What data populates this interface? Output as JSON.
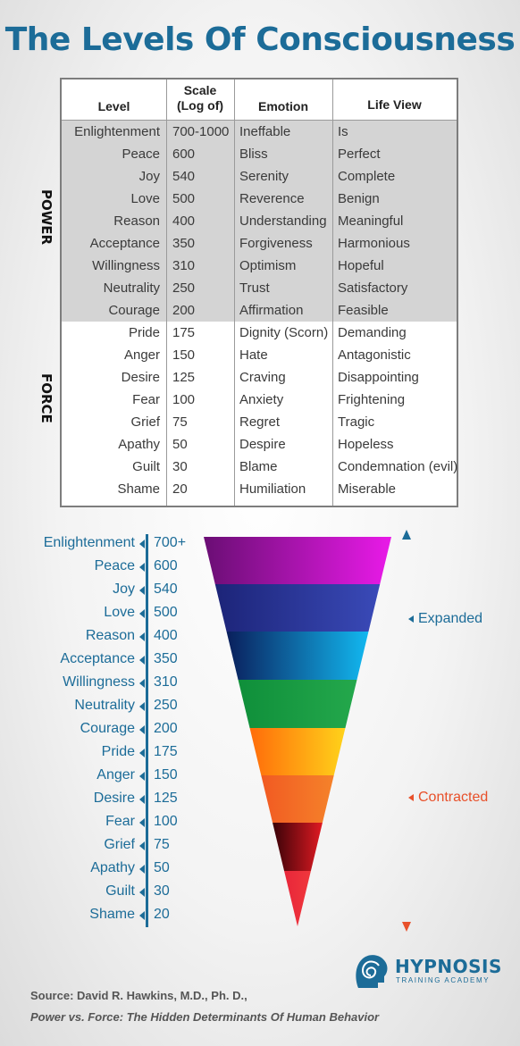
{
  "title": "The Levels Of Consciousness",
  "table": {
    "headers": {
      "level": "Level",
      "scale_line1": "Scale",
      "scale_line2": "(Log of)",
      "emotion": "Emotion",
      "life_view": "Life View"
    },
    "power_label": "POWER",
    "force_label": "FORCE",
    "rows": [
      {
        "level": "Enlightenment",
        "scale": "700-1000",
        "emotion": "Ineffable",
        "life_view": "Is",
        "group": "power"
      },
      {
        "level": "Peace",
        "scale": "600",
        "emotion": "Bliss",
        "life_view": "Perfect",
        "group": "power"
      },
      {
        "level": "Joy",
        "scale": "540",
        "emotion": "Serenity",
        "life_view": "Complete",
        "group": "power"
      },
      {
        "level": "Love",
        "scale": "500",
        "emotion": "Reverence",
        "life_view": "Benign",
        "group": "power"
      },
      {
        "level": "Reason",
        "scale": "400",
        "emotion": "Understanding",
        "life_view": "Meaningful",
        "group": "power"
      },
      {
        "level": "Acceptance",
        "scale": "350",
        "emotion": "Forgiveness",
        "life_view": "Harmonious",
        "group": "power"
      },
      {
        "level": "Willingness",
        "scale": "310",
        "emotion": "Optimism",
        "life_view": "Hopeful",
        "group": "power"
      },
      {
        "level": "Neutrality",
        "scale": "250",
        "emotion": "Trust",
        "life_view": "Satisfactory",
        "group": "power"
      },
      {
        "level": "Courage",
        "scale": "200",
        "emotion": "Affirmation",
        "life_view": "Feasible",
        "group": "power"
      },
      {
        "level": "Pride",
        "scale": "175",
        "emotion": "Dignity (Scorn)",
        "life_view": "Demanding",
        "group": "force"
      },
      {
        "level": "Anger",
        "scale": "150",
        "emotion": "Hate",
        "life_view": "Antagonistic",
        "group": "force"
      },
      {
        "level": "Desire",
        "scale": "125",
        "emotion": "Craving",
        "life_view": "Disappointing",
        "group": "force"
      },
      {
        "level": "Fear",
        "scale": "100",
        "emotion": "Anxiety",
        "life_view": "Frightening",
        "group": "force"
      },
      {
        "level": "Grief",
        "scale": "75",
        "emotion": "Regret",
        "life_view": "Tragic",
        "group": "force"
      },
      {
        "level": "Apathy",
        "scale": "50",
        "emotion": "Despire",
        "life_view": "Hopeless",
        "group": "force"
      },
      {
        "level": "Guilt",
        "scale": "30",
        "emotion": "Blame",
        "life_view": "Condemnation (evil)",
        "group": "force"
      },
      {
        "level": "Shame",
        "scale": "20",
        "emotion": "Humiliation",
        "life_view": "Miserable",
        "group": "force"
      }
    ]
  },
  "scale_chart": {
    "levels": [
      {
        "name": "Enlightenment",
        "value": "700+"
      },
      {
        "name": "Peace",
        "value": "600"
      },
      {
        "name": "Joy",
        "value": "540"
      },
      {
        "name": "Love",
        "value": "500"
      },
      {
        "name": "Reason",
        "value": "400"
      },
      {
        "name": "Acceptance",
        "value": "350"
      },
      {
        "name": "Willingness",
        "value": "310"
      },
      {
        "name": "Neutrality",
        "value": "250"
      },
      {
        "name": "Courage",
        "value": "200"
      },
      {
        "name": "Pride",
        "value": "175"
      },
      {
        "name": "Anger",
        "value": "150"
      },
      {
        "name": "Desire",
        "value": "125"
      },
      {
        "name": "Fear",
        "value": "100"
      },
      {
        "name": "Grief",
        "value": "75"
      },
      {
        "name": "Apathy",
        "value": "50"
      },
      {
        "name": "Guilt",
        "value": "30"
      },
      {
        "name": "Shame",
        "value": "20"
      }
    ],
    "bands": [
      "#c81fd6",
      "#2f3aa6",
      "#0a4f98",
      "#1aa148",
      "#ffa10c",
      "#f26a22",
      "#b8091b",
      "#ec2d32"
    ],
    "expanded_label": "Expanded",
    "contracted_label": "Contracted",
    "expanded_color": "#1c6c98",
    "contracted_color": "#e8502a"
  },
  "logo": {
    "name": "HYPNOSIS",
    "sub": "TRAINING ACADEMY",
    "icon": "head-spiral-icon"
  },
  "source": {
    "line1": "Source: David R. Hawkins, M.D., Ph. D.,",
    "line2": "Power vs. Force: The Hidden Determinants Of Human Behavior"
  }
}
